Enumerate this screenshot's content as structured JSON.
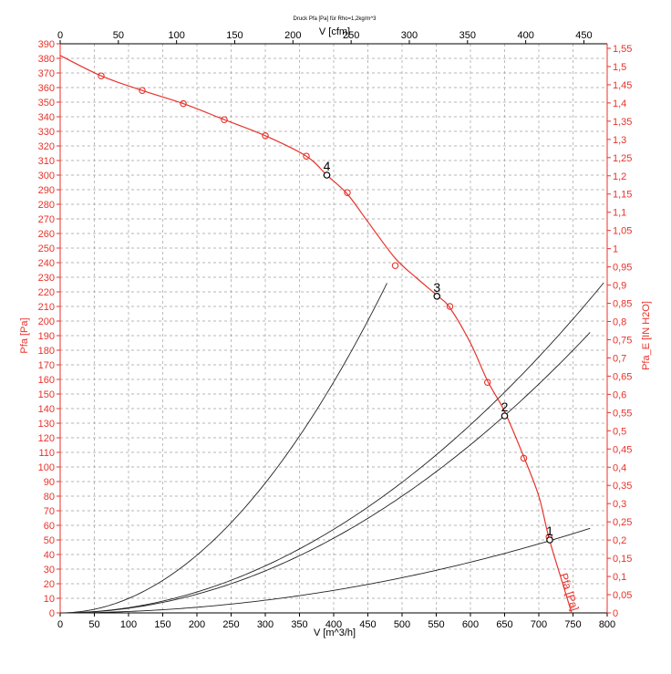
{
  "chart_data": {
    "type": "line",
    "title": "Druck Pfa [Pa] für Rho=1,2kg/m^3",
    "xlabel": "V [m^3/h]",
    "x2label": "V [cfm]",
    "ylabel": "Pfa [Pa]",
    "y2label": "Pfa_E [IN H2O]",
    "xlim": [
      0,
      800
    ],
    "ylim": [
      0,
      390
    ],
    "x2lim": [
      0,
      470
    ],
    "y2lim": [
      0,
      1.5625
    ],
    "grid": true,
    "x_ticks": [
      "0",
      "50",
      "100",
      "150",
      "200",
      "250",
      "300",
      "350",
      "400",
      "450",
      "500",
      "550",
      "600",
      "650",
      "700",
      "750",
      "800"
    ],
    "x2_ticks": [
      "0",
      "50",
      "100",
      "150",
      "200",
      "250",
      "300",
      "350",
      "400",
      "450"
    ],
    "y_ticks": [
      "0",
      "10",
      "20",
      "30",
      "40",
      "50",
      "60",
      "70",
      "80",
      "90",
      "100",
      "110",
      "120",
      "130",
      "140",
      "150",
      "160",
      "170",
      "180",
      "190",
      "200",
      "210",
      "220",
      "230",
      "240",
      "250",
      "260",
      "270",
      "280",
      "290",
      "300",
      "310",
      "320",
      "330",
      "340",
      "350",
      "360",
      "370",
      "380",
      "390"
    ],
    "y2_ticks": [
      "0",
      "0,05",
      "0,1",
      "0,15",
      "0,2",
      "0,25",
      "0,3",
      "0,35",
      "0,4",
      "0,45",
      "0,5",
      "0,55",
      "0,6",
      "0,65",
      "0,7",
      "0,75",
      "0,8",
      "0,85",
      "0,9",
      "0,95",
      "1",
      "1,05",
      "1,1",
      "1,15",
      "1,2",
      "1,25",
      "1,3",
      "1,35",
      "1,4",
      "1,45",
      "1,5",
      "1,55"
    ],
    "fan_curve": {
      "name": "Pfa [Pa]",
      "color": "#e8322a",
      "x": [
        0,
        60,
        120,
        180,
        240,
        300,
        360,
        390,
        420,
        450,
        490,
        520,
        550,
        570,
        600,
        625,
        650,
        678,
        700,
        715,
        735,
        748
      ],
      "y": [
        382,
        368,
        358,
        349,
        338,
        327,
        313,
        300,
        287,
        268,
        243,
        230,
        218,
        209,
        185,
        159,
        138,
        107,
        80,
        51,
        20,
        0
      ],
      "markers_x": [
        60,
        120,
        180,
        240,
        300,
        360,
        420,
        490,
        570,
        625,
        678,
        715
      ],
      "markers_y": [
        368,
        358,
        349,
        338,
        327,
        313,
        288,
        238,
        210,
        158,
        106,
        52
      ]
    },
    "system_curves": [
      {
        "k": 0.000989,
        "x_end": 478
      },
      {
        "k": 0.000358,
        "x_end": 795
      },
      {
        "k": 0.00032,
        "x_end": 775
      },
      {
        "k": 9.65e-05,
        "x_end": 775
      }
    ],
    "operating_points": [
      {
        "label": "1",
        "x": 716,
        "y": 50
      },
      {
        "label": "2",
        "x": 650,
        "y": 135
      },
      {
        "label": "3",
        "x": 551,
        "y": 217
      },
      {
        "label": "4",
        "x": 390,
        "y": 300
      }
    ],
    "colors": {
      "axis_red": "#e8322a",
      "axis_black": "#000000",
      "grid": "#a0a0a0",
      "system_curve": "#222222"
    }
  }
}
